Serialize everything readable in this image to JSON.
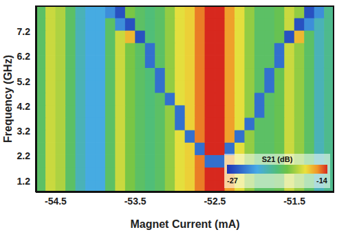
{
  "chart_data": {
    "type": "heatmap",
    "xlabel": "Magnet Current (mA)",
    "ylabel": "Frequency (GHz)",
    "x": [
      -54.6875,
      -54.5625,
      -54.4375,
      -54.3125,
      -54.1875,
      -54.0625,
      -53.9375,
      -53.8125,
      -53.6875,
      -53.5625,
      -53.4375,
      -53.3125,
      -53.1875,
      -53.0625,
      -52.9375,
      -52.8125,
      -52.6875,
      -52.5625,
      -52.4375,
      -52.3125,
      -52.1875,
      -52.0625,
      -51.9375,
      -51.8125,
      -51.6875,
      -51.5625,
      -51.4375,
      -51.3125,
      -51.1875,
      -51.0625
    ],
    "y": [
      1.0,
      1.5,
      2.0,
      2.5,
      3.0,
      3.5,
      4.0,
      4.5,
      5.0,
      5.5,
      6.0,
      6.5,
      7.0,
      7.5,
      8.0
    ],
    "cells": [
      [
        -20,
        -17.5,
        -18,
        -20,
        -22,
        -23,
        -23,
        -20,
        -17.5,
        -19,
        -20,
        -20.5,
        -20,
        -18.5,
        -17,
        -16.5,
        -15,
        -14,
        -14,
        -15.5,
        -17,
        -18.5,
        -20,
        -20,
        -19.5,
        -17.5,
        -18.5,
        -20,
        -22,
        -21
      ],
      [
        -20,
        -17.5,
        -18,
        -20,
        -22,
        -23,
        -23,
        -20,
        -17.5,
        -19,
        -20,
        -20.5,
        -20,
        -18.5,
        -17,
        -16.5,
        -15,
        -14,
        -14,
        -15.5,
        -17,
        -18.5,
        -20,
        -20,
        -19.5,
        -17.5,
        -18.5,
        -20,
        -22,
        -21
      ],
      [
        -20,
        -17.5,
        -18,
        -20,
        -22,
        -23,
        -23,
        -20,
        -17.5,
        -19,
        -20,
        -20.5,
        -20,
        -18.5,
        -17,
        -16.5,
        -15,
        -25,
        -25,
        -15.5,
        -17,
        -18.5,
        -20,
        -20,
        -19.5,
        -17.5,
        -18.5,
        -20,
        -22,
        -21
      ],
      [
        -20,
        -17.5,
        -18,
        -20,
        -22,
        -23,
        -23,
        -20,
        -17.5,
        -19,
        -20,
        -20.5,
        -20,
        -18.5,
        -17,
        -16.5,
        -25,
        -14,
        -14,
        -25,
        -17,
        -18.5,
        -20,
        -20,
        -19.5,
        -17.5,
        -18.5,
        -20,
        -22,
        -21
      ],
      [
        -20,
        -17.5,
        -18,
        -20,
        -22,
        -23,
        -23,
        -20,
        -17.5,
        -19,
        -20,
        -20.5,
        -20,
        -18.5,
        -17,
        -25,
        -15,
        -14,
        -14,
        -15.5,
        -25,
        -18.5,
        -20,
        -20,
        -19.5,
        -17.5,
        -18.5,
        -20,
        -22,
        -21
      ],
      [
        -20,
        -17.5,
        -18,
        -20,
        -22,
        -23,
        -23,
        -20,
        -17.5,
        -19,
        -20,
        -20.5,
        -20,
        -18.5,
        -25,
        -16.5,
        -15,
        -14,
        -14,
        -15.5,
        -17,
        -25,
        -20,
        -20,
        -19.5,
        -17.5,
        -18.5,
        -20,
        -22,
        -21
      ],
      [
        -20,
        -17.5,
        -18,
        -20,
        -22,
        -23,
        -23,
        -20,
        -17.5,
        -19,
        -20,
        -20.5,
        -20,
        -18.5,
        -25,
        -16.5,
        -15,
        -14,
        -14,
        -15.5,
        -17,
        -18.5,
        -25,
        -20,
        -19.5,
        -17.5,
        -18.5,
        -20,
        -22,
        -21
      ],
      [
        -20,
        -17.5,
        -18,
        -20,
        -22,
        -23,
        -23,
        -20,
        -17.5,
        -19,
        -20,
        -20.5,
        -20,
        -25,
        -17,
        -16.5,
        -15,
        -14,
        -14,
        -15.5,
        -17,
        -18.5,
        -25,
        -20,
        -19.5,
        -17.5,
        -18.5,
        -20,
        -22,
        -21
      ],
      [
        -20,
        -17.5,
        -18,
        -20,
        -22,
        -23,
        -23,
        -20,
        -17.5,
        -19,
        -20,
        -20.5,
        -25,
        -18.5,
        -17,
        -16.5,
        -15,
        -14,
        -14,
        -15.5,
        -17,
        -18.5,
        -20,
        -25,
        -19.5,
        -17.5,
        -18.5,
        -20,
        -22,
        -21
      ],
      [
        -20,
        -17.5,
        -18,
        -20,
        -22,
        -23,
        -23,
        -20,
        -17.5,
        -19,
        -20,
        -20.5,
        -25,
        -18.5,
        -17,
        -16.5,
        -15,
        -14,
        -14,
        -15.5,
        -17,
        -18.5,
        -20,
        -25,
        -19.5,
        -17.5,
        -18.5,
        -20,
        -22,
        -21
      ],
      [
        -20,
        -17.5,
        -18,
        -20,
        -22,
        -23,
        -23,
        -20,
        -17.5,
        -19,
        -20,
        -25,
        -20,
        -18.5,
        -17,
        -16.5,
        -15,
        -14,
        -14,
        -15.5,
        -17,
        -18.5,
        -20,
        -20,
        -25,
        -17.5,
        -18.5,
        -20,
        -22,
        -21
      ],
      [
        -20,
        -17.5,
        -18,
        -20,
        -22,
        -23,
        -23,
        -20,
        -17.5,
        -19,
        -20,
        -25,
        -20,
        -18.5,
        -17,
        -16.5,
        -15,
        -14,
        -14,
        -15.5,
        -17,
        -18.5,
        -20,
        -20,
        -25,
        -17.5,
        -18.5,
        -20,
        -22,
        -21
      ],
      [
        -20,
        -17.5,
        -18,
        -20,
        -22,
        -23,
        -23,
        -20,
        -17.5,
        -16,
        -26,
        -20.5,
        -20,
        -18.5,
        -17,
        -16.5,
        -15,
        -14,
        -14,
        -15.5,
        -17,
        -18.5,
        -20,
        -20,
        -19.5,
        -26,
        -16,
        -20,
        -22,
        -21
      ],
      [
        -20,
        -17.5,
        -18,
        -20,
        -22,
        -23,
        -23,
        -20,
        -24,
        -26,
        -20,
        -20.5,
        -20,
        -18.5,
        -17,
        -16.5,
        -15,
        -14,
        -14,
        -15.5,
        -17,
        -18.5,
        -20,
        -20,
        -19.5,
        -17.5,
        -26,
        -24,
        -22,
        -21
      ],
      [
        -20,
        -17.5,
        -18,
        -20,
        -22,
        -23,
        -23,
        -24,
        -26,
        -19,
        -20,
        -20.5,
        -20,
        -18.5,
        -17,
        -16.5,
        -15,
        -14,
        -14,
        -15.5,
        -17,
        -18.5,
        -20,
        -20,
        -19.5,
        -17.5,
        -18.5,
        -26,
        -24,
        -21
      ]
    ],
    "xlim": [
      -54.75,
      -51.0
    ],
    "ylim": [
      0.75,
      8.25
    ],
    "xticks": [
      -54.5,
      -53.5,
      -52.5,
      -51.5
    ],
    "yticks": [
      1.2,
      2.2,
      3.2,
      4.2,
      5.2,
      6.2,
      7.2
    ],
    "colorbar": {
      "label": "S21 (dB)",
      "range": [
        -27,
        -14
      ],
      "ticks": [
        -27,
        -14
      ]
    }
  }
}
